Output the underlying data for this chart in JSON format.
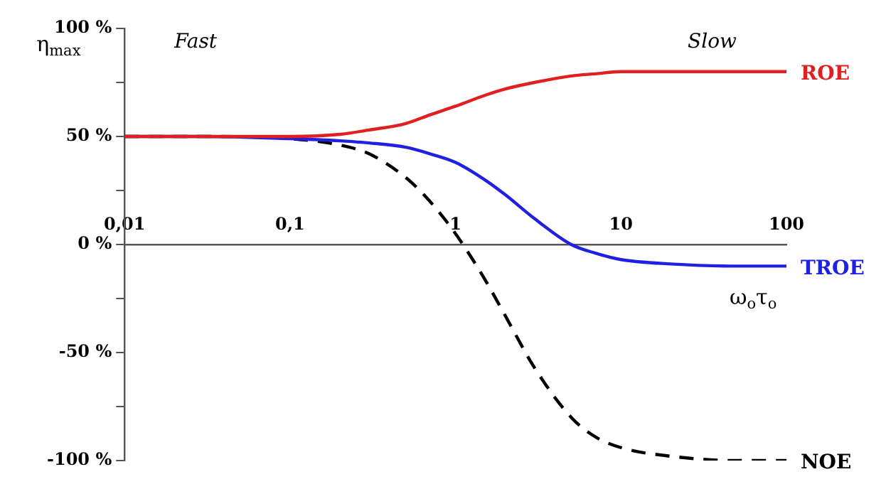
{
  "chart_data": {
    "type": "line",
    "xlabel": "ω$_{o}$τ$_{o}$",
    "ylabel": "η$_{max}$",
    "log": "x",
    "annotations": [
      "Fast",
      "Slow"
    ],
    "xlim": [
      0.01,
      100
    ],
    "xticks": [
      {
        "value": 0.01,
        "label": "0,01"
      },
      {
        "value": 0.1,
        "label": "0,1"
      },
      {
        "value": 1,
        "label": "1"
      },
      {
        "value": 10,
        "label": "10"
      },
      {
        "value": 100,
        "label": "100"
      }
    ],
    "ylim": [
      -100,
      100
    ],
    "yticks": [
      {
        "value": -100,
        "label": "-100 %"
      },
      {
        "value": -75,
        "label": null
      },
      {
        "value": -50,
        "label": "-50 %"
      },
      {
        "value": -25,
        "label": null
      },
      {
        "value": 0,
        "label": "0 %"
      },
      {
        "value": 25,
        "label": null
      },
      {
        "value": 50,
        "label": "50 %"
      },
      {
        "value": 75,
        "label": null
      },
      {
        "value": 100,
        "label": "100 %"
      }
    ],
    "grid": false,
    "legend": false,
    "marker": "none",
    "series": [
      {
        "name": "ROE",
        "color": "#e02020",
        "line_style": "solid",
        "x": [
          0.01,
          0.03,
          0.1,
          0.2,
          0.3,
          0.5,
          0.7,
          1,
          1.5,
          2,
          3,
          5,
          7,
          10,
          20,
          50,
          100
        ],
        "values": [
          50,
          50,
          50,
          51,
          53,
          56,
          60,
          64,
          69,
          72,
          75,
          78,
          79,
          80,
          80,
          80,
          80
        ]
      },
      {
        "name": "TROE",
        "color": "#2020e0",
        "line_style": "solid",
        "x": [
          0.01,
          0.03,
          0.1,
          0.2,
          0.3,
          0.5,
          0.7,
          1,
          1.5,
          2,
          3,
          5,
          7,
          10,
          20,
          50,
          100
        ],
        "values": [
          50,
          50,
          49,
          48,
          47,
          45,
          42,
          38,
          30,
          23,
          12,
          0,
          -4,
          -7,
          -9,
          -10,
          -10
        ]
      },
      {
        "name": "NOE",
        "color": "#000000",
        "line_style": "dashed",
        "x": [
          0.01,
          0.03,
          0.1,
          0.2,
          0.3,
          0.5,
          0.7,
          1,
          1.5,
          2,
          3,
          5,
          7,
          10,
          20,
          50,
          100
        ],
        "values": [
          50,
          50,
          49,
          46,
          42,
          31,
          20,
          5,
          -16,
          -33,
          -57,
          -80,
          -89,
          -94,
          -98,
          -100,
          -100
        ]
      }
    ]
  }
}
